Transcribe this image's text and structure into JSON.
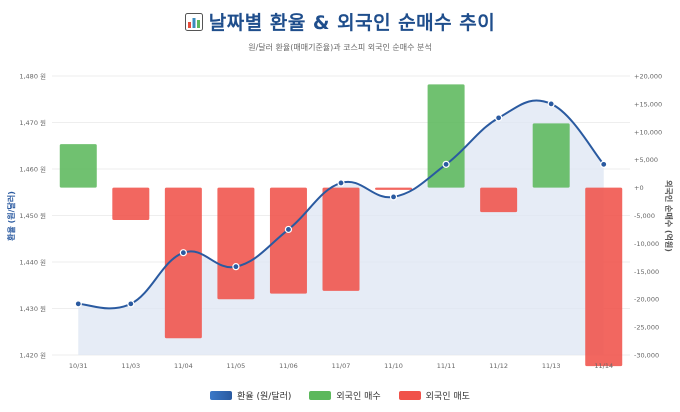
{
  "header": {
    "title": "날짜별 환율 & 외국인 순매수 추이",
    "subtitle": "원/달러 환율(매매기준율)과 코스피 외국인 순매수 분석",
    "icon": "bar-chart-icon"
  },
  "colors": {
    "line": "#2a5aa0",
    "area": "#dde6f3",
    "buy": "#5cb85c",
    "sell": "#f0524a"
  },
  "legend": {
    "rate": "환율 (원/달러)",
    "buy": "외국인 매수",
    "sell": "외국인 매도"
  },
  "chart_data": {
    "type": "bar+line",
    "title": "날짜별 환율 & 외국인 순매수 추이",
    "categories": [
      "10/31",
      "11/03",
      "11/04",
      "11/05",
      "11/06",
      "11/07",
      "11/10",
      "11/11",
      "11/12",
      "11/13",
      "11/14"
    ],
    "series": [
      {
        "name": "환율 (원/달러)",
        "type": "line",
        "axis": "left",
        "values": [
          1431,
          1431,
          1442,
          1439,
          1447,
          1457,
          1454,
          1461,
          1471,
          1474,
          1461
        ]
      },
      {
        "name": "외국인 순매수",
        "type": "bar",
        "axis": "right",
        "values": [
          7800,
          -5800,
          -27000,
          -20000,
          -19000,
          -18500,
          -400,
          18500,
          -4400,
          11500,
          -32000
        ]
      }
    ],
    "ylabel": "환율 (원/달러)",
    "ylabel_right": "외국인 순매수 (억원)",
    "ylim": [
      1420,
      1480
    ],
    "ylim_right": [
      -30000,
      20000
    ],
    "yticks_left": [
      "1,420 원",
      "1,430 원",
      "1,440 원",
      "1,450 원",
      "1,460 원",
      "1,470 원",
      "1,480 원"
    ],
    "yticks_right": [
      "-30,000",
      "-25,000",
      "-20,000",
      "-15,000",
      "-10,000",
      "-5,000",
      "+0",
      "+5,000",
      "+10,000",
      "+15,000",
      "+20,000"
    ],
    "legend": [
      "환율 (원/달러)",
      "외국인 매수",
      "외국인 매도"
    ]
  }
}
